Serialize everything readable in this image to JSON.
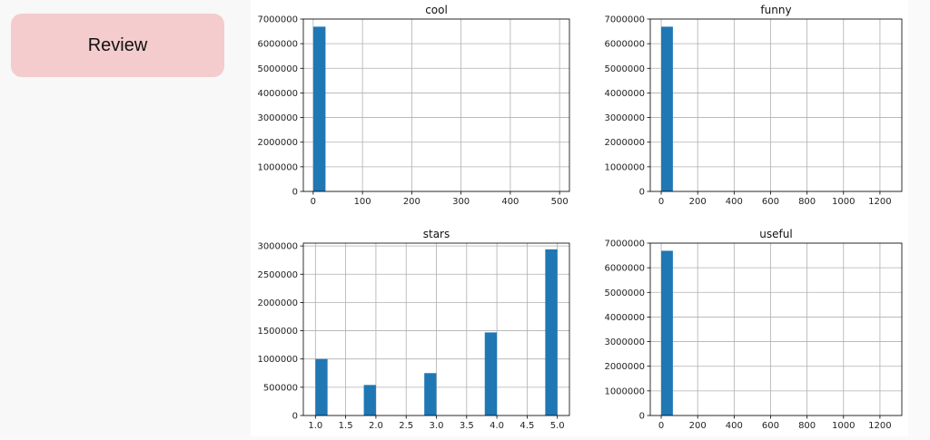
{
  "sidebar": {
    "review_label": "Review"
  },
  "colors": {
    "bar": "#1f77b4",
    "grid": "#b0b0b0",
    "review_bg": "#f4cccd"
  },
  "chart_data": [
    {
      "type": "bar",
      "title": "cool",
      "xlim": [
        -20,
        520
      ],
      "ylim": [
        0,
        7000000
      ],
      "xticks": [
        "0",
        "100",
        "200",
        "300",
        "400",
        "500"
      ],
      "xtick_values": [
        0,
        100,
        200,
        300,
        400,
        500
      ],
      "yticks": [
        "0",
        "1000000",
        "2000000",
        "3000000",
        "4000000",
        "5000000",
        "6000000",
        "7000000"
      ],
      "ytick_values": [
        0,
        1000000,
        2000000,
        3000000,
        4000000,
        5000000,
        6000000,
        7000000
      ],
      "bins": [
        {
          "x0": 0,
          "x1": 25,
          "value": 6690000
        }
      ],
      "grid": true
    },
    {
      "type": "bar",
      "title": "funny",
      "xlim": [
        -60,
        1320
      ],
      "ylim": [
        0,
        7000000
      ],
      "xticks": [
        "0",
        "200",
        "400",
        "600",
        "800",
        "1000",
        "1200"
      ],
      "xtick_values": [
        0,
        200,
        400,
        600,
        800,
        1000,
        1200
      ],
      "yticks": [
        "0",
        "1000000",
        "2000000",
        "3000000",
        "4000000",
        "5000000",
        "6000000",
        "7000000"
      ],
      "ytick_values": [
        0,
        1000000,
        2000000,
        3000000,
        4000000,
        5000000,
        6000000,
        7000000
      ],
      "bins": [
        {
          "x0": 0,
          "x1": 64,
          "value": 6690000
        }
      ],
      "grid": true
    },
    {
      "type": "bar",
      "title": "stars",
      "xlim": [
        0.8,
        5.2
      ],
      "ylim": [
        0,
        3050000
      ],
      "xticks": [
        "1.0",
        "1.5",
        "2.0",
        "2.5",
        "3.0",
        "3.5",
        "4.0",
        "4.5",
        "5.0"
      ],
      "xtick_values": [
        1.0,
        1.5,
        2.0,
        2.5,
        3.0,
        3.5,
        4.0,
        4.5,
        5.0
      ],
      "yticks": [
        "0",
        "500000",
        "1000000",
        "1500000",
        "2000000",
        "2500000",
        "3000000"
      ],
      "ytick_values": [
        0,
        500000,
        1000000,
        1500000,
        2000000,
        2500000,
        3000000
      ],
      "bins": [
        {
          "x0": 1.0,
          "x1": 1.2,
          "value": 1000000
        },
        {
          "x0": 1.8,
          "x1": 2.0,
          "value": 540000
        },
        {
          "x0": 2.8,
          "x1": 3.0,
          "value": 750000
        },
        {
          "x0": 3.8,
          "x1": 4.0,
          "value": 1470000
        },
        {
          "x0": 4.8,
          "x1": 5.0,
          "value": 2940000
        }
      ],
      "grid": true
    },
    {
      "type": "bar",
      "title": "useful",
      "xlim": [
        -60,
        1320
      ],
      "ylim": [
        0,
        7000000
      ],
      "xticks": [
        "0",
        "200",
        "400",
        "600",
        "800",
        "1000",
        "1200"
      ],
      "xtick_values": [
        0,
        200,
        400,
        600,
        800,
        1000,
        1200
      ],
      "yticks": [
        "0",
        "1000000",
        "2000000",
        "3000000",
        "4000000",
        "5000000",
        "6000000",
        "7000000"
      ],
      "ytick_values": [
        0,
        1000000,
        2000000,
        3000000,
        4000000,
        5000000,
        6000000,
        7000000
      ],
      "bins": [
        {
          "x0": 0,
          "x1": 64,
          "value": 6690000
        }
      ],
      "grid": true
    }
  ]
}
